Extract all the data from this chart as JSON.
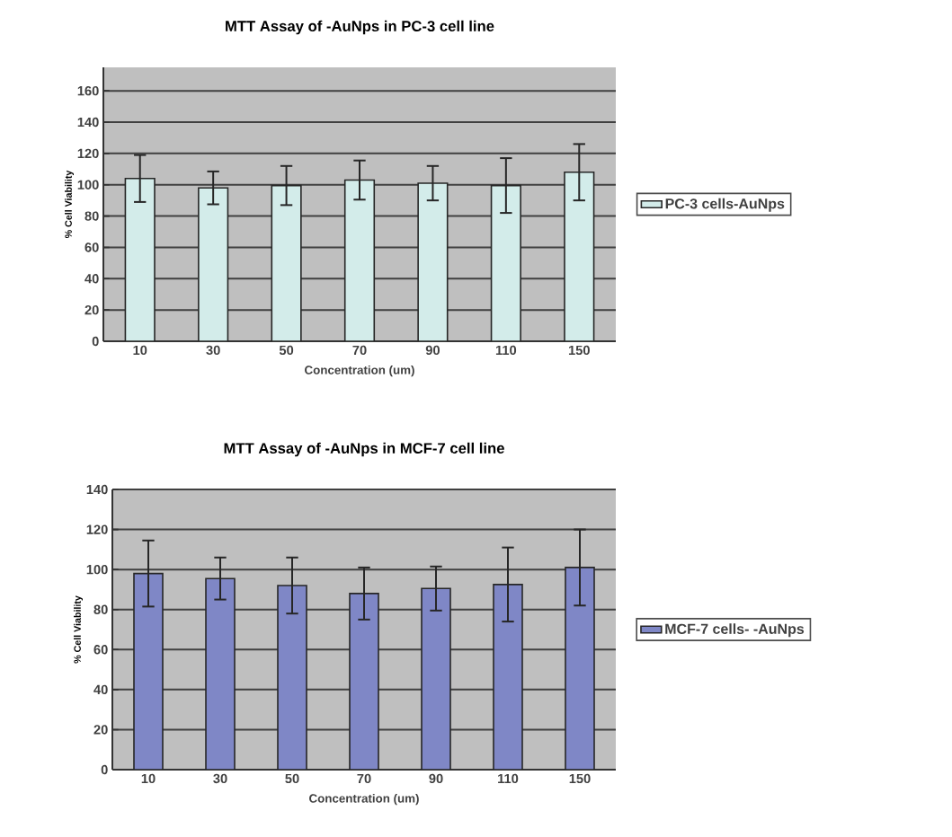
{
  "chart_data": [
    {
      "type": "bar",
      "title": "MTT Assay of -AuNps in PC-3 cell line",
      "xlabel": "Concentration (um)",
      "ylabel": "% Cell Viability",
      "categories": [
        "10",
        "30",
        "50",
        "70",
        "90",
        "110",
        "150"
      ],
      "series": [
        {
          "name": "PC-3 cells-AuNps",
          "color": "#d3ecea",
          "values": [
            104,
            98,
            99.5,
            103,
            101,
            99.5,
            108
          ],
          "errors": [
            15,
            10.5,
            12.5,
            12.5,
            11,
            17.5,
            18
          ]
        }
      ],
      "ylim": [
        0,
        175
      ],
      "yticks": [
        0,
        20,
        40,
        60,
        80,
        100,
        120,
        140,
        160
      ],
      "grid": "y",
      "legend": "right"
    },
    {
      "type": "bar",
      "title": "MTT Assay of -AuNps in MCF-7 cell line",
      "xlabel": "Concentration (um)",
      "ylabel": "% Cell Viability",
      "categories": [
        "10",
        "30",
        "50",
        "70",
        "90",
        "110",
        "150"
      ],
      "series": [
        {
          "name": "MCF-7 cells- -AuNps",
          "color": "#7f87c6",
          "values": [
            98,
            95.5,
            92,
            88,
            90.5,
            92.5,
            101
          ],
          "errors": [
            16.5,
            10.5,
            14,
            13,
            11,
            18.5,
            19
          ]
        }
      ],
      "ylim": [
        0,
        140
      ],
      "yticks": [
        0,
        20,
        40,
        60,
        80,
        100,
        120,
        140
      ],
      "grid": "y",
      "legend": "right"
    }
  ]
}
